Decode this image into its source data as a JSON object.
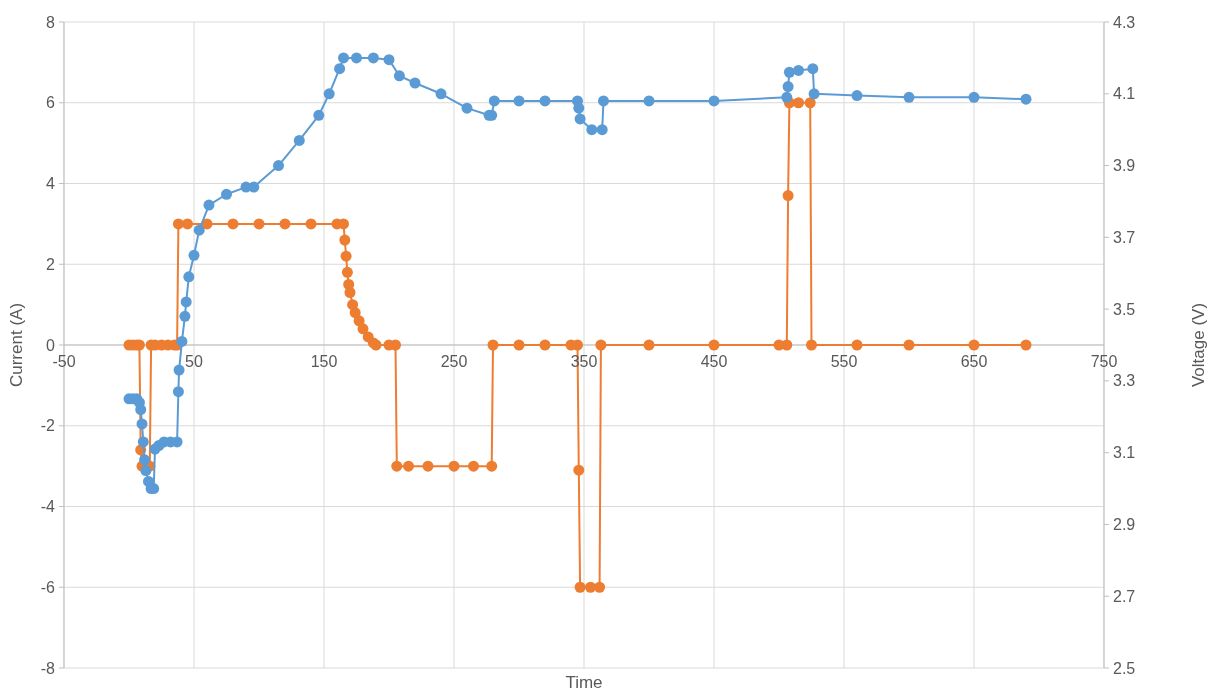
{
  "chart_data": {
    "type": "line",
    "xlabel": "Time",
    "ylabel": "Current (A)",
    "y2label": "Voltage (V)",
    "xlim": [
      -50,
      750
    ],
    "xticks": [
      -50,
      50,
      150,
      250,
      350,
      450,
      550,
      650,
      750
    ],
    "ylim": [
      -8,
      8
    ],
    "yticks": [
      -8,
      -6,
      -4,
      -2,
      0,
      2,
      4,
      6,
      8
    ],
    "y2lim": [
      2.5,
      4.3
    ],
    "y2ticks": [
      2.5,
      2.7,
      2.9,
      3.1,
      3.3,
      3.5,
      3.7,
      3.9,
      4.1,
      4.3
    ],
    "grid": true,
    "marker": "circle",
    "line_style": "solid",
    "series": [
      {
        "color": "#ed7d31",
        "x": [
          0,
          3,
          6,
          8,
          9,
          10,
          13,
          16,
          17,
          20,
          25,
          30,
          35,
          37,
          38,
          45,
          60,
          80,
          100,
          120,
          140,
          160,
          165,
          166,
          167,
          168,
          169,
          170,
          172,
          174,
          177,
          180,
          184,
          188,
          190,
          200,
          205,
          206,
          215,
          230,
          250,
          265,
          279,
          280,
          300,
          320,
          340,
          345,
          346,
          347,
          355,
          362,
          363,
          400,
          450,
          500,
          506,
          507,
          508,
          515,
          524,
          525,
          560,
          600,
          650,
          690
        ],
        "values": [
          0,
          0,
          0,
          0,
          -2.6,
          -3,
          -3,
          -3,
          0,
          0,
          0,
          0,
          0,
          0,
          3,
          3,
          3,
          3,
          3,
          3,
          3,
          3,
          3,
          2.6,
          2.2,
          1.8,
          1.5,
          1.3,
          1,
          0.8,
          0.6,
          0.4,
          0.2,
          0.05,
          0,
          0,
          0,
          -3,
          -3,
          -3,
          -3,
          -3,
          -3,
          0,
          0,
          0,
          0,
          0,
          -3.1,
          -6,
          -6,
          -6,
          0,
          0,
          0,
          0,
          0,
          3.7,
          6,
          6,
          6,
          0,
          0,
          0,
          0,
          0
        ]
      },
      {
        "color": "#5b9bd5",
        "axis": "y2",
        "x": [
          0,
          3,
          6,
          8,
          9,
          10,
          11,
          12,
          13,
          15,
          17,
          19,
          20,
          23,
          27,
          32,
          37,
          38,
          38.5,
          40.7,
          43,
          44,
          46,
          50,
          54,
          61.5,
          75,
          90,
          96,
          115,
          131,
          146,
          154,
          162,
          165,
          175,
          188,
          200,
          208,
          220,
          240,
          260,
          277,
          279,
          281,
          300,
          320,
          345,
          346,
          347,
          356,
          364,
          365,
          400,
          450,
          506,
          507,
          508,
          515,
          526,
          527,
          560,
          600,
          650,
          690
        ],
        "values": [
          3.25,
          3.25,
          3.25,
          3.24,
          3.22,
          3.18,
          3.13,
          3.08,
          3.05,
          3.02,
          3,
          3,
          3.11,
          3.12,
          3.13,
          3.13,
          3.13,
          3.27,
          3.33,
          3.41,
          3.48,
          3.52,
          3.59,
          3.65,
          3.72,
          3.79,
          3.82,
          3.84,
          3.84,
          3.9,
          3.97,
          4.04,
          4.1,
          4.17,
          4.2,
          4.2,
          4.2,
          4.195,
          4.15,
          4.13,
          4.1,
          4.06,
          4.04,
          4.04,
          4.08,
          4.08,
          4.08,
          4.08,
          4.06,
          4.03,
          4,
          4,
          4.08,
          4.08,
          4.08,
          4.09,
          4.12,
          4.16,
          4.165,
          4.17,
          4.1,
          4.095,
          4.09,
          4.09,
          4.085
        ]
      }
    ]
  }
}
